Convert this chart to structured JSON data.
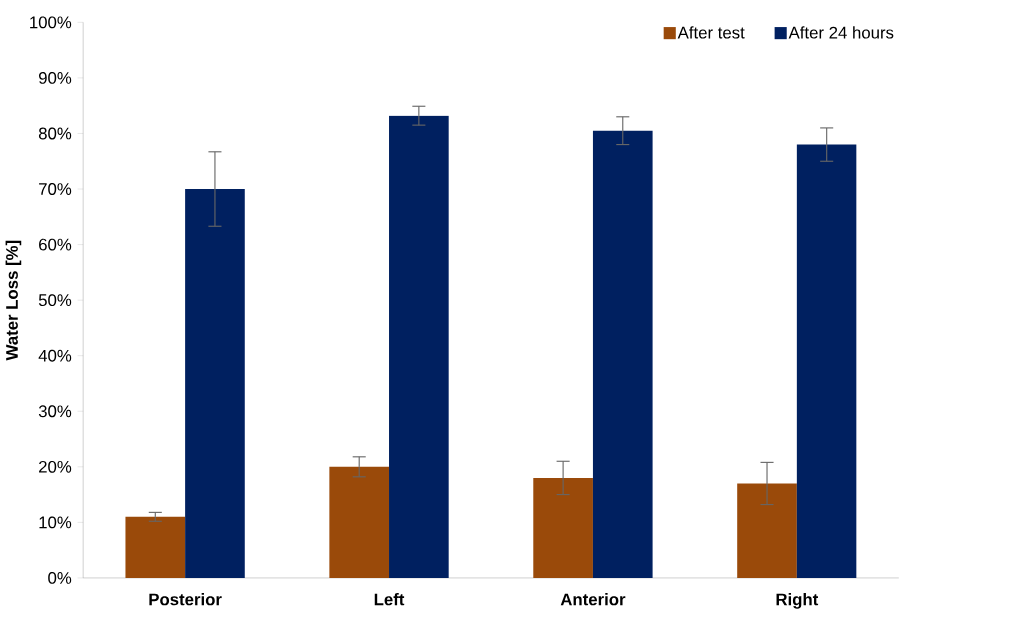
{
  "chart_data": {
    "type": "bar",
    "ylabel": "Water Loss [%]",
    "categories": [
      "Posterior",
      "Left",
      "Anterior",
      "Right"
    ],
    "series": [
      {
        "name": "After test",
        "color": "#9a4a0a",
        "values": [
          11,
          20,
          18,
          17
        ],
        "errors": [
          0.8,
          1.8,
          3,
          3.8
        ]
      },
      {
        "name": "After 24 hours",
        "color": "#002060",
        "values": [
          70,
          83.2,
          80.5,
          78
        ],
        "errors": [
          6.7,
          1.7,
          2.5,
          3
        ]
      }
    ],
    "ylim": [
      0,
      100
    ],
    "yticks": [
      {
        "value": 0,
        "label": "0%"
      },
      {
        "value": 10,
        "label": "10%"
      },
      {
        "value": 20,
        "label": "20%"
      },
      {
        "value": 30,
        "label": "30%"
      },
      {
        "value": 40,
        "label": "40%"
      },
      {
        "value": 50,
        "label": "50%"
      },
      {
        "value": 60,
        "label": "60%"
      },
      {
        "value": 70,
        "label": "70%"
      },
      {
        "value": 80,
        "label": "80%"
      },
      {
        "value": 90,
        "label": "90%"
      },
      {
        "value": 100,
        "label": "100%"
      }
    ],
    "grid": false,
    "legend": "top right"
  }
}
